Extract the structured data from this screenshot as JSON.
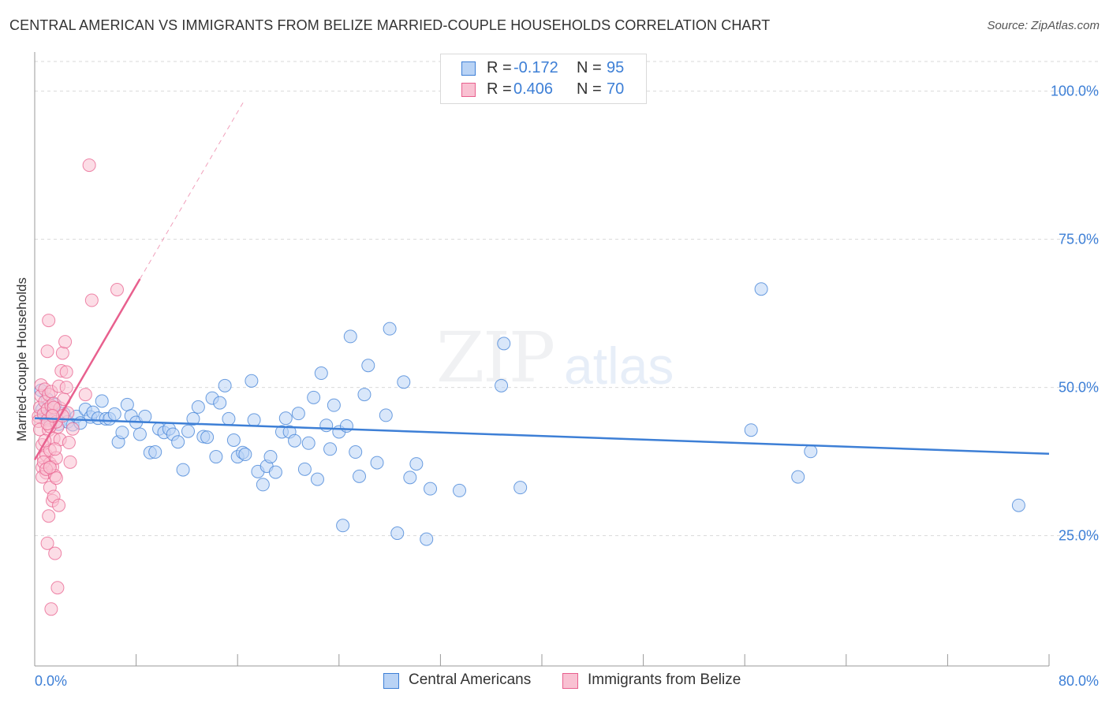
{
  "title": "CENTRAL AMERICAN VS IMMIGRANTS FROM BELIZE MARRIED-COUPLE HOUSEHOLDS CORRELATION CHART",
  "source": "Source: ZipAtlas.com",
  "watermark": {
    "zip": "ZIP",
    "atlas": "atlas"
  },
  "stats": [
    {
      "r_label": "R =",
      "r_value": "-0.172",
      "n_label": "N =",
      "n_value": "95"
    },
    {
      "r_label": "R =",
      "r_value": "0.406",
      "n_label": "N =",
      "n_value": "70"
    }
  ],
  "colors": {
    "blue": "#3d7fd6",
    "blue_fill": "#b9d3f5",
    "pink": "#e8608e",
    "pink_fill": "#f9c1d2",
    "axis_text": "#3d7fd6",
    "grid": "#d9d9d9"
  },
  "chart_data": {
    "type": "scatter",
    "title": "CENTRAL AMERICAN VS IMMIGRANTS FROM BELIZE MARRIED-COUPLE HOUSEHOLDS CORRELATION CHART",
    "xlabel": "",
    "ylabel": "Married-couple Households",
    "xlim": [
      0,
      80
    ],
    "ylim": [
      3,
      105
    ],
    "x_tick_labels": [
      {
        "x": 0,
        "label": "0.0%"
      },
      {
        "x": 80,
        "label": "80.0%"
      }
    ],
    "y_tick_labels": [
      {
        "y": 100,
        "label": "100.0%"
      },
      {
        "y": 75,
        "label": "75.0%"
      },
      {
        "y": 50,
        "label": "50.0%"
      },
      {
        "y": 25,
        "label": "25.0%"
      }
    ],
    "grid": true,
    "legend_position": "bottom-center",
    "series": [
      {
        "name": "Central Americans",
        "color": "#3d7fd6",
        "trend": {
          "x0": 0,
          "y0": 44.8,
          "x1": 80,
          "y1": 38.8
        },
        "points": [
          [
            0.5,
            49.5
          ],
          [
            0.6,
            46.3
          ],
          [
            0.8,
            45.1
          ],
          [
            1.0,
            48.0
          ],
          [
            1.2,
            44.5
          ],
          [
            1.4,
            45.8
          ],
          [
            1.6,
            47.1
          ],
          [
            1.9,
            43.8
          ],
          [
            2.3,
            45.6
          ],
          [
            2.6,
            44.2
          ],
          [
            3.0,
            43.7
          ],
          [
            3.3,
            45.1
          ],
          [
            3.6,
            44.0
          ],
          [
            4.0,
            46.3
          ],
          [
            4.4,
            45.0
          ],
          [
            4.6,
            45.8
          ],
          [
            5.0,
            44.8
          ],
          [
            5.3,
            47.7
          ],
          [
            5.6,
            44.7
          ],
          [
            5.9,
            44.7
          ],
          [
            6.3,
            45.5
          ],
          [
            6.6,
            40.8
          ],
          [
            6.9,
            42.4
          ],
          [
            7.3,
            47.1
          ],
          [
            7.6,
            45.2
          ],
          [
            8.0,
            44.1
          ],
          [
            8.3,
            42.1
          ],
          [
            8.7,
            45.1
          ],
          [
            9.1,
            39.0
          ],
          [
            9.5,
            39.1
          ],
          [
            9.8,
            43.0
          ],
          [
            10.2,
            42.4
          ],
          [
            10.6,
            43.0
          ],
          [
            10.9,
            42.1
          ],
          [
            11.3,
            40.8
          ],
          [
            11.7,
            36.1
          ],
          [
            12.1,
            42.6
          ],
          [
            12.5,
            44.7
          ],
          [
            12.9,
            46.7
          ],
          [
            13.3,
            41.7
          ],
          [
            13.6,
            41.6
          ],
          [
            14.0,
            48.2
          ],
          [
            14.3,
            38.3
          ],
          [
            14.6,
            47.4
          ],
          [
            15.0,
            50.3
          ],
          [
            15.3,
            44.7
          ],
          [
            15.7,
            41.1
          ],
          [
            16.0,
            38.3
          ],
          [
            16.4,
            39.0
          ],
          [
            16.6,
            38.7
          ],
          [
            17.1,
            51.1
          ],
          [
            17.3,
            44.5
          ],
          [
            17.6,
            35.8
          ],
          [
            18.0,
            33.6
          ],
          [
            18.3,
            36.7
          ],
          [
            18.6,
            38.3
          ],
          [
            19.0,
            35.7
          ],
          [
            19.5,
            42.5
          ],
          [
            19.8,
            44.8
          ],
          [
            20.1,
            42.5
          ],
          [
            20.5,
            41.0
          ],
          [
            20.8,
            45.6
          ],
          [
            21.3,
            36.2
          ],
          [
            21.6,
            40.6
          ],
          [
            22.0,
            48.3
          ],
          [
            22.3,
            34.5
          ],
          [
            22.6,
            52.4
          ],
          [
            23.0,
            43.6
          ],
          [
            23.3,
            39.6
          ],
          [
            23.6,
            47.0
          ],
          [
            24.0,
            42.5
          ],
          [
            24.3,
            26.7
          ],
          [
            24.6,
            43.5
          ],
          [
            24.9,
            58.6
          ],
          [
            25.3,
            39.1
          ],
          [
            25.6,
            35.0
          ],
          [
            26.0,
            48.8
          ],
          [
            26.3,
            53.7
          ],
          [
            27.0,
            37.3
          ],
          [
            27.7,
            45.3
          ],
          [
            28.0,
            59.9
          ],
          [
            28.6,
            25.4
          ],
          [
            29.1,
            50.9
          ],
          [
            29.6,
            34.8
          ],
          [
            30.1,
            37.1
          ],
          [
            30.9,
            24.4
          ],
          [
            31.2,
            32.9
          ],
          [
            33.5,
            32.6
          ],
          [
            36.8,
            50.3
          ],
          [
            37.0,
            57.4
          ],
          [
            38.3,
            33.1
          ],
          [
            56.5,
            42.8
          ],
          [
            57.3,
            66.6
          ],
          [
            60.2,
            34.9
          ],
          [
            61.2,
            39.2
          ],
          [
            77.6,
            30.1
          ]
        ]
      },
      {
        "name": "Immigrants from Belize",
        "color": "#e8608e",
        "trend": {
          "x0": 0,
          "y0": 37.8,
          "x1": 8.3,
          "y1": 68.3
        },
        "trend_extension": {
          "x0": 8.3,
          "y0": 68.3,
          "x1": 16.5,
          "y1": 98.3
        },
        "points": [
          [
            0.3,
            45.1
          ],
          [
            0.3,
            44.3
          ],
          [
            0.4,
            46.6
          ],
          [
            0.4,
            42.9
          ],
          [
            0.5,
            48.6
          ],
          [
            0.5,
            50.4
          ],
          [
            0.6,
            36.5
          ],
          [
            0.6,
            40.3
          ],
          [
            0.7,
            38.1
          ],
          [
            0.7,
            45.5
          ],
          [
            0.8,
            47.6
          ],
          [
            0.8,
            49.7
          ],
          [
            0.9,
            35.6
          ],
          [
            0.9,
            38.6
          ],
          [
            1.0,
            44.5
          ],
          [
            1.0,
            46.3
          ],
          [
            1.1,
            42.8
          ],
          [
            1.1,
            48.8
          ],
          [
            1.2,
            37.2
          ],
          [
            1.2,
            39.4
          ],
          [
            1.3,
            46.9
          ],
          [
            1.3,
            49.3
          ],
          [
            1.4,
            36.6
          ],
          [
            1.4,
            45.3
          ],
          [
            1.5,
            41.4
          ],
          [
            1.5,
            47.3
          ],
          [
            1.6,
            35.1
          ],
          [
            1.7,
            38.1
          ],
          [
            1.8,
            43.3
          ],
          [
            1.9,
            50.2
          ],
          [
            0.6,
            34.9
          ],
          [
            0.7,
            37.4
          ],
          [
            0.8,
            41.0
          ],
          [
            1.0,
            23.7
          ],
          [
            1.1,
            28.3
          ],
          [
            1.2,
            33.1
          ],
          [
            1.3,
            12.6
          ],
          [
            1.4,
            30.9
          ],
          [
            1.5,
            31.6
          ],
          [
            1.6,
            22.0
          ],
          [
            1.8,
            16.2
          ],
          [
            1.9,
            30.1
          ],
          [
            2.0,
            46.5
          ],
          [
            2.1,
            52.8
          ],
          [
            2.2,
            55.8
          ],
          [
            2.3,
            48.0
          ],
          [
            2.4,
            57.7
          ],
          [
            2.5,
            52.6
          ],
          [
            2.6,
            45.7
          ],
          [
            2.8,
            37.4
          ],
          [
            1.0,
            56.1
          ],
          [
            1.1,
            61.3
          ],
          [
            1.2,
            43.4
          ],
          [
            1.5,
            46.6
          ],
          [
            1.7,
            44.2
          ],
          [
            2.0,
            41.2
          ],
          [
            2.2,
            45.2
          ],
          [
            2.5,
            50.0
          ],
          [
            2.7,
            40.7
          ],
          [
            3.0,
            43.0
          ],
          [
            4.0,
            48.8
          ],
          [
            4.3,
            87.5
          ],
          [
            4.5,
            64.7
          ],
          [
            6.5,
            66.5
          ],
          [
            0.9,
            36.2
          ],
          [
            1.0,
            43.9
          ],
          [
            1.2,
            36.5
          ],
          [
            1.4,
            45.2
          ],
          [
            1.6,
            39.6
          ],
          [
            1.7,
            34.7
          ]
        ]
      }
    ]
  },
  "legend": [
    {
      "label": "Central Americans"
    },
    {
      "label": "Immigrants from Belize"
    }
  ]
}
